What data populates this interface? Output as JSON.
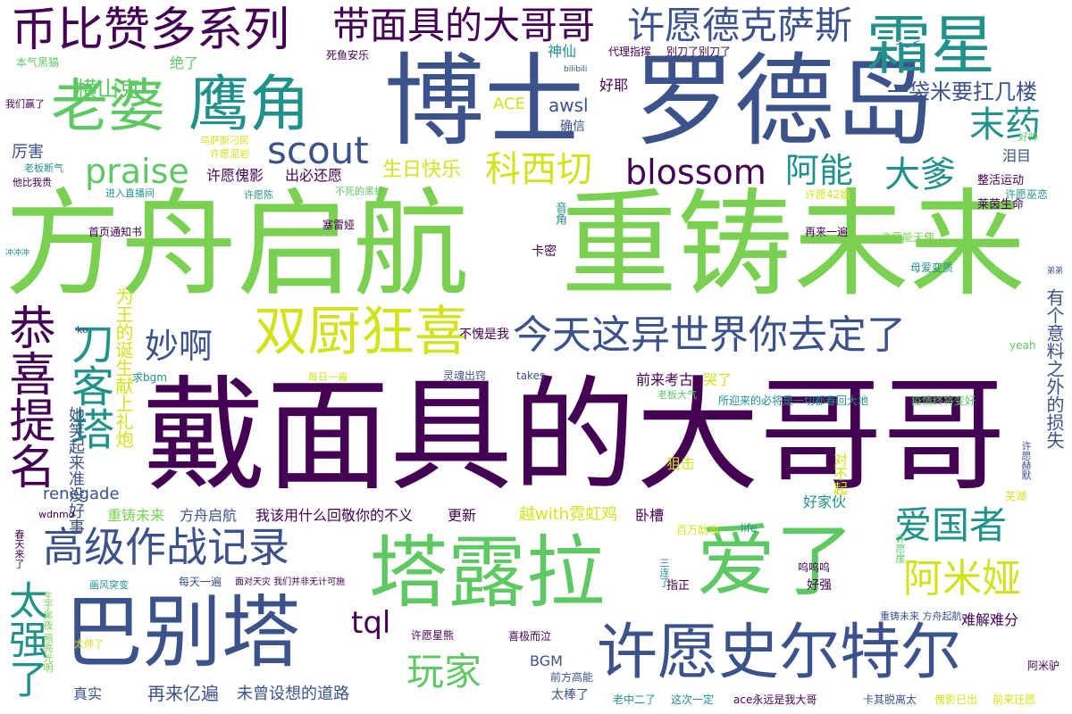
{
  "palette": {
    "deep_purple": "#440154",
    "blue": "#3b528b",
    "teal": "#21918c",
    "green": "#5ec962",
    "lime": "#7ad151",
    "yellow": "#d2e21b",
    "background": "#ffffff"
  },
  "words": [
    {
      "text": "方舟启航",
      "color": "#7ad151"
    },
    {
      "text": "重铸未来",
      "color": "#7ad151"
    },
    {
      "text": "戴面具的大哥哥",
      "color": "#440154"
    },
    {
      "text": "博士",
      "color": "#3b528b"
    },
    {
      "text": "罗德岛",
      "color": "#3b528b"
    },
    {
      "text": "巴别塔",
      "color": "#3b528b"
    },
    {
      "text": "塔露拉",
      "color": "#5ec962"
    },
    {
      "text": "爱了",
      "color": "#5ec962"
    },
    {
      "text": "许愿史尔特尔",
      "color": "#3b528b"
    },
    {
      "text": "霜星",
      "color": "#21918c"
    },
    {
      "text": "鹰角",
      "color": "#21918c"
    },
    {
      "text": "老婆",
      "color": "#5ec962"
    },
    {
      "text": "币比赞多系列",
      "color": "#440154"
    },
    {
      "text": "带面具的大哥哥",
      "color": "#440154"
    },
    {
      "text": "许愿德克萨斯",
      "color": "#3b528b"
    },
    {
      "text": "双厨狂喜",
      "color": "#d2e21b"
    },
    {
      "text": "今天这异世界你去定了",
      "color": "#3b528b"
    },
    {
      "text": "高级作战记录",
      "color": "#3b528b"
    },
    {
      "text": "恭喜提名",
      "color": "#440154"
    },
    {
      "text": "刀客塔",
      "color": "#21918c"
    },
    {
      "text": "scout",
      "color": "#3b528b"
    },
    {
      "text": "praise",
      "color": "#5ec962"
    },
    {
      "text": "blossom",
      "color": "#440154"
    },
    {
      "text": "科西切",
      "color": "#d2e21b"
    },
    {
      "text": "阿能",
      "color": "#21918c"
    },
    {
      "text": "大爹",
      "color": "#21918c"
    },
    {
      "text": "末药",
      "color": "#21918c"
    },
    {
      "text": "妙啊",
      "color": "#3b528b"
    },
    {
      "text": "爱国者",
      "color": "#21918c"
    },
    {
      "text": "阿米娅",
      "color": "#d2e21b"
    },
    {
      "text": "玩家",
      "color": "#5ec962"
    },
    {
      "text": "tql",
      "color": "#440154"
    },
    {
      "text": "太强了",
      "color": "#21918c"
    },
    {
      "text": "一袋米要扛几楼",
      "color": "#3b528b"
    },
    {
      "text": "横山克",
      "color": "#5ec962"
    },
    {
      "text": "生日快乐",
      "color": "#d2e21b"
    },
    {
      "text": "许愿傀影",
      "color": "#440154"
    },
    {
      "text": "出必还愿",
      "color": "#440154"
    },
    {
      "text": "ACE",
      "color": "#d2e21b"
    },
    {
      "text": "awsl",
      "color": "#3b528b"
    },
    {
      "text": "神仙",
      "color": "#21918c"
    },
    {
      "text": "好耶",
      "color": "#440154"
    },
    {
      "text": "确信",
      "color": "#3b528b"
    },
    {
      "text": "绝了",
      "color": "#5ec962"
    },
    {
      "text": "厉害",
      "color": "#3b528b"
    },
    {
      "text": "泪目",
      "color": "#3b528b"
    },
    {
      "text": "renegade",
      "color": "#3b528b"
    },
    {
      "text": "她笑起来准没好事",
      "color": "#3b528b"
    },
    {
      "text": "为王的诞生献上礼炮",
      "color": "#d2e21b"
    },
    {
      "text": "有个意料之外的损失",
      "color": "#3b528b"
    },
    {
      "text": "重铸未来",
      "color": "#7ad151"
    },
    {
      "text": "方舟启航",
      "color": "#3b528b"
    },
    {
      "text": "我该用什么回敬你的不义",
      "color": "#440154"
    },
    {
      "text": "更新",
      "color": "#440154"
    },
    {
      "text": "越with霓虹鸡",
      "color": "#d2e21b"
    },
    {
      "text": "卧槽",
      "color": "#440154"
    },
    {
      "text": "好家伙",
      "color": "#21918c"
    },
    {
      "text": "对不起",
      "color": "#d2e21b"
    },
    {
      "text": "狙击",
      "color": "#d2e21b"
    },
    {
      "text": "哭了",
      "color": "#d2e21b"
    },
    {
      "text": "前来考古",
      "color": "#440154"
    },
    {
      "text": "不愧是我",
      "color": "#440154"
    },
    {
      "text": "卡密",
      "color": "#440154"
    },
    {
      "text": "难解难分",
      "color": "#440154"
    },
    {
      "text": "BGM",
      "color": "#3b528b"
    },
    {
      "text": "真实",
      "color": "#3b528b"
    },
    {
      "text": "再来亿遍",
      "color": "#3b528b"
    },
    {
      "text": "未曾设想的道路",
      "color": "#3b528b"
    },
    {
      "text": "太棒了",
      "color": "#3b528b"
    },
    {
      "text": "好强",
      "color": "#440154"
    },
    {
      "text": "指正",
      "color": "#440154"
    },
    {
      "text": "莱茵生命",
      "color": "#440154"
    },
    {
      "text": "整活运动",
      "color": "#440154"
    },
    {
      "text": "音角",
      "color": "#21918c"
    },
    {
      "text": "塞雷娅",
      "color": "#440154"
    },
    {
      "text": "首页通知书",
      "color": "#440154"
    },
    {
      "text": "再来一遍",
      "color": "#440154"
    },
    {
      "text": "许愿能天使",
      "color": "#7ad151"
    },
    {
      "text": "许愿42姐",
      "color": "#d2e21b"
    },
    {
      "text": "许愿巫恋",
      "color": "#21918c"
    },
    {
      "text": "母爱变质",
      "color": "#21918c"
    },
    {
      "text": "所迎来的必将是一切都春回大地",
      "color": "#21918c"
    },
    {
      "text": "疫情终将变好",
      "color": "#5ec962"
    },
    {
      "text": "yeah",
      "color": "#5ec962"
    },
    {
      "text": "芜湖",
      "color": "#d2e21b"
    },
    {
      "text": "百万助攻",
      "color": "#d2e21b"
    },
    {
      "text": "life",
      "color": "#21918c"
    },
    {
      "text": "呜呜呜",
      "color": "#440154"
    },
    {
      "text": "许愿星熊",
      "color": "#440154"
    },
    {
      "text": "喜极而泣",
      "color": "#440154"
    },
    {
      "text": "前方高能",
      "color": "#3b528b"
    },
    {
      "text": "老中二了",
      "color": "#21918c"
    },
    {
      "text": "这次一定",
      "color": "#21918c"
    },
    {
      "text": "ace永远是我大哥",
      "color": "#440154"
    },
    {
      "text": "卡其脱离太",
      "color": "#3b528b"
    },
    {
      "text": "傀影已出",
      "color": "#d2e21b"
    },
    {
      "text": "前来还愿",
      "color": "#d2e21b"
    },
    {
      "text": "阿米驴",
      "color": "#440154"
    },
    {
      "text": "重铸未来 方舟起航",
      "color": "#3b528b"
    },
    {
      "text": "本气黑猫",
      "color": "#5ec962"
    },
    {
      "text": "我们赢了",
      "color": "#440154"
    },
    {
      "text": "死鱼安乐",
      "color": "#440154"
    },
    {
      "text": "代理指挥",
      "color": "#440154"
    },
    {
      "text": "别刀了别刀了",
      "color": "#440154"
    },
    {
      "text": "bilibili",
      "color": "#3b528b"
    },
    {
      "text": "乌萨斯刁民",
      "color": "#d2e21b"
    },
    {
      "text": "许愿泥岩",
      "color": "#d2e21b"
    },
    {
      "text": "许愿陈",
      "color": "#21918c"
    },
    {
      "text": "老板断气",
      "color": "#21918c"
    },
    {
      "text": "他比我贵",
      "color": "#440154"
    },
    {
      "text": "进入直播间",
      "color": "#21918c"
    },
    {
      "text": "不死的黑蛇",
      "color": "#5ec962"
    },
    {
      "text": "冲冲冲",
      "color": "#21918c"
    },
    {
      "text": "ko",
      "color": "#3b528b"
    },
    {
      "text": "求bgm",
      "color": "#21918c"
    },
    {
      "text": "每日一遍",
      "color": "#d2e21b"
    },
    {
      "text": "灵魂出窍",
      "color": "#3b528b"
    },
    {
      "text": "takes",
      "color": "#3b528b"
    },
    {
      "text": "老板大气",
      "color": "#5ec962"
    },
    {
      "text": "wdnmd",
      "color": "#440154"
    },
    {
      "text": "春天来了",
      "color": "#440154"
    },
    {
      "text": "画风突变",
      "color": "#21918c"
    },
    {
      "text": "每天一遍",
      "color": "#3b528b"
    },
    {
      "text": "面对天灾 我们并非无计可施",
      "color": "#440154"
    },
    {
      "text": "三连了",
      "color": "#21918c"
    },
    {
      "text": "太帅了",
      "color": "#d2e21b"
    },
    {
      "text": "生于黑夜 照亮光明",
      "color": "#7ad151"
    },
    {
      "text": "许愿崖",
      "color": "#5ec962"
    },
    {
      "text": "许愿赫默",
      "color": "#3b528b"
    },
    {
      "text": "好帅",
      "color": "#5ec962"
    },
    {
      "text": "弟弟",
      "color": "#3b528b"
    },
    {
      "text": "> _ <",
      "color": "#3b528b"
    }
  ]
}
